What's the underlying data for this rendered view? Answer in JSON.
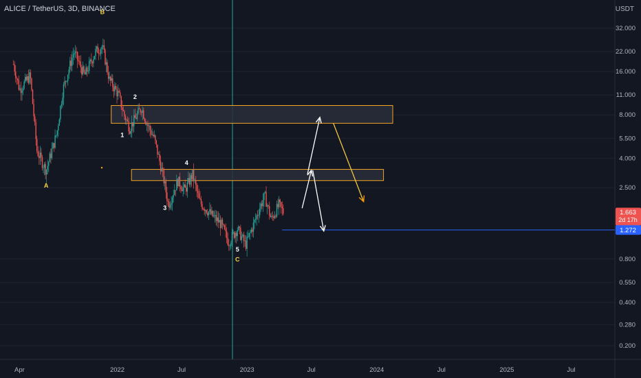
{
  "header": {
    "title": "ALICE / TetherUS, 3D, BINANCE",
    "unit": "USDT"
  },
  "colors": {
    "bg": "#131722",
    "up": "#26a69a",
    "down": "#ef5350",
    "zone_border": "#f5a623",
    "zone_fill": "#2a2e39",
    "target_line": "#2962ff",
    "wave_white": "#ffffff",
    "wave_yellow": "#f5d547",
    "arrow_white": "#ffffff",
    "arrow_yellow": "#f5c542",
    "arrow_orange": "#ff9800"
  },
  "price_badges": [
    {
      "value": "1.663",
      "sub": "2d 17h",
      "color": "#ef5350"
    },
    {
      "value": "1.272",
      "color": "#2962ff"
    }
  ],
  "chart_data": {
    "type": "candlestick",
    "scale": "log",
    "y_ticks": [
      "32.000",
      "22.000",
      "16.000",
      "11.000",
      "8.000",
      "5.500",
      "4.000",
      "2.500",
      "0.800",
      "0.550",
      "0.400",
      "0.280",
      "0.200"
    ],
    "x_ticks": [
      "Apr",
      "2022",
      "Jul",
      "2023",
      "Jul",
      "2024",
      "Jul",
      "2025",
      "Jul"
    ],
    "ylim": [
      0.18,
      45
    ],
    "xlim": [
      "2021-02-05",
      "2025-11-01"
    ],
    "series_path": [
      [
        "2021-03-15",
        18
      ],
      [
        "2021-04-01",
        12
      ],
      [
        "2021-05-01",
        15
      ],
      [
        "2021-05-20",
        4.5
      ],
      [
        "2021-06-15",
        3.3
      ],
      [
        "2021-07-15",
        6
      ],
      [
        "2021-08-01",
        12
      ],
      [
        "2021-09-01",
        22
      ],
      [
        "2021-10-01",
        15
      ],
      [
        "2021-11-01",
        22
      ],
      [
        "2021-11-20",
        24
      ],
      [
        "2021-12-10",
        14
      ],
      [
        "2022-01-05",
        11
      ],
      [
        "2022-01-20",
        8
      ],
      [
        "2022-02-05",
        6.5
      ],
      [
        "2022-03-10",
        9
      ],
      [
        "2022-03-25",
        7
      ],
      [
        "2022-04-15",
        5.5
      ],
      [
        "2022-05-10",
        3
      ],
      [
        "2022-05-25",
        1.9
      ],
      [
        "2022-06-20",
        2.8
      ],
      [
        "2022-07-10",
        2.4
      ],
      [
        "2022-08-01",
        3.1
      ],
      [
        "2022-08-20",
        2.0
      ],
      [
        "2022-09-25",
        1.6
      ],
      [
        "2022-10-20",
        1.4
      ],
      [
        "2022-11-10",
        1.05
      ],
      [
        "2022-12-05",
        1.3
      ],
      [
        "2022-12-28",
        1.0
      ],
      [
        "2023-01-20",
        1.4
      ],
      [
        "2023-02-05",
        1.8
      ],
      [
        "2023-02-20",
        2.2
      ],
      [
        "2023-03-10",
        1.5
      ],
      [
        "2023-04-01",
        1.9
      ],
      [
        "2023-04-15",
        1.663
      ]
    ],
    "zones": [
      {
        "x0": "2021-12-15",
        "x1": "2024-02-15",
        "y_low": 7.0,
        "y_high": 9.3
      },
      {
        "x0": "2022-02-10",
        "x1": "2024-01-20",
        "y_low": 2.8,
        "y_high": 3.35
      }
    ],
    "target_line": {
      "x0": "2023-04-10",
      "value": 1.272
    },
    "wave_labels": [
      {
        "text": "B",
        "x": "2021-11-20",
        "y": 40,
        "color": "yellow"
      },
      {
        "text": "A",
        "x": "2021-06-15",
        "y": 2.5,
        "color": "yellow"
      },
      {
        "text": "2",
        "x": "2022-02-20",
        "y": 10.3,
        "color": "white"
      },
      {
        "text": "1",
        "x": "2022-01-15",
        "y": 5.6,
        "color": "white"
      },
      {
        "text": "4",
        "x": "2022-07-15",
        "y": 3.6,
        "color": "white"
      },
      {
        "text": "3",
        "x": "2022-05-15",
        "y": 1.75,
        "color": "white"
      },
      {
        "text": "5",
        "x": "2022-12-05",
        "y": 0.9,
        "color": "white"
      },
      {
        "text": "C",
        "x": "2022-12-05",
        "y": 0.77,
        "color": "yellow"
      }
    ],
    "projection_arrows": [
      {
        "from": [
          "2023-06-20",
          3.1
        ],
        "to": [
          "2023-07-25",
          7.7
        ],
        "color": "white",
        "head": "arrow"
      },
      {
        "from": [
          "2023-06-05",
          1.8
        ],
        "to": [
          "2023-07-01",
          3.3
        ],
        "color": "white",
        "head": "arrow"
      },
      {
        "from": [
          "2023-07-05",
          3.3
        ],
        "to": [
          "2023-08-05",
          1.25
        ],
        "color": "white",
        "head": "arrow"
      },
      {
        "from": [
          "2023-09-01",
          7.0
        ],
        "to": [
          "2023-11-25",
          2.0
        ],
        "color": "yellow",
        "head": "arrow"
      }
    ]
  }
}
